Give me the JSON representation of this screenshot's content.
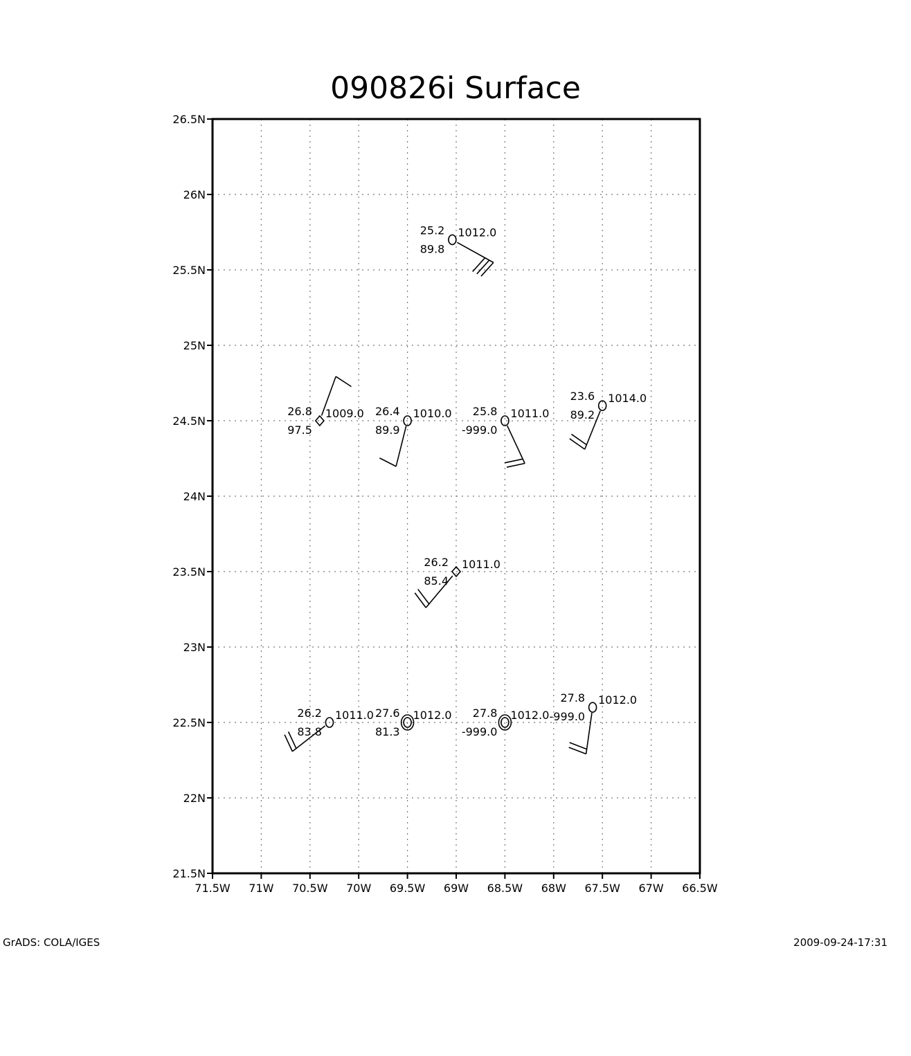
{
  "title": "090826i Surface",
  "footer_left": "GrADS: COLA/IGES",
  "footer_right": "2009-09-24-17:31",
  "map": {
    "lon_range": [
      -71.5,
      -66.5
    ],
    "lat_range": [
      21.5,
      26.5
    ],
    "lon_ticks": [
      {
        "value": -71.5,
        "label": "71.5W"
      },
      {
        "value": -71.0,
        "label": "71W"
      },
      {
        "value": -70.5,
        "label": "70.5W"
      },
      {
        "value": -70.0,
        "label": "70W"
      },
      {
        "value": -69.5,
        "label": "69.5W"
      },
      {
        "value": -69.0,
        "label": "69W"
      },
      {
        "value": -68.5,
        "label": "68.5W"
      },
      {
        "value": -68.0,
        "label": "68W"
      },
      {
        "value": -67.5,
        "label": "67.5W"
      },
      {
        "value": -67.0,
        "label": "67W"
      },
      {
        "value": -66.5,
        "label": "66.5W"
      }
    ],
    "lat_ticks": [
      {
        "value": 21.5,
        "label": "21.5N"
      },
      {
        "value": 22.0,
        "label": "22N"
      },
      {
        "value": 22.5,
        "label": "22.5N"
      },
      {
        "value": 23.0,
        "label": "23N"
      },
      {
        "value": 23.5,
        "label": "23.5N"
      },
      {
        "value": 24.0,
        "label": "24N"
      },
      {
        "value": 24.5,
        "label": "24.5N"
      },
      {
        "value": 25.0,
        "label": "25N"
      },
      {
        "value": 25.5,
        "label": "25.5N"
      },
      {
        "value": 26.0,
        "label": "26N"
      },
      {
        "value": 26.5,
        "label": "26.5N"
      }
    ],
    "grid": true,
    "stations": [
      {
        "lon": -69.04,
        "lat": 25.7,
        "marker": "circle",
        "temp": "25.2",
        "pressure": "1012.0",
        "humidity": "89.8",
        "wind_to_deg": 119,
        "wind_barbs": 3
      },
      {
        "lon": -70.4,
        "lat": 24.5,
        "marker": "diamond",
        "temp": "26.8",
        "pressure": "1009.0",
        "humidity": "97.5",
        "wind_to_deg": 20,
        "wind_barbs": 1
      },
      {
        "lon": -69.5,
        "lat": 24.5,
        "marker": "circle",
        "temp": "26.4",
        "pressure": "1010.0",
        "humidity": "89.9",
        "wind_to_deg": 194,
        "wind_barbs": 1
      },
      {
        "lon": -68.5,
        "lat": 24.5,
        "marker": "circle",
        "temp": "25.8",
        "pressure": "1011.0",
        "humidity": "-999.0",
        "wind_to_deg": 155,
        "wind_barbs": 2
      },
      {
        "lon": -67.5,
        "lat": 24.6,
        "marker": "circle",
        "temp": "23.6",
        "pressure": "1014.0",
        "humidity": "89.2",
        "wind_to_deg": 202,
        "wind_barbs": 2
      },
      {
        "lon": -69.0,
        "lat": 23.5,
        "marker": "diamond",
        "temp": "26.2",
        "pressure": "1011.0",
        "humidity": "85.4",
        "wind_to_deg": 220,
        "wind_barbs": 2
      },
      {
        "lon": -70.3,
        "lat": 22.5,
        "marker": "circle",
        "temp": "26.2",
        "pressure": "1011.0",
        "humidity": "83.8",
        "wind_to_deg": 232,
        "wind_barbs": 2
      },
      {
        "lon": -69.5,
        "lat": 22.5,
        "marker": "double-circle",
        "temp": "27.6",
        "pressure": "1012.0",
        "humidity": "81.3",
        "wind_to_deg": null,
        "wind_barbs": 0
      },
      {
        "lon": -68.5,
        "lat": 22.5,
        "marker": "double-circle",
        "temp": "27.8",
        "pressure": "1012.0",
        "humidity": "-999.0",
        "wind_to_deg": null,
        "wind_barbs": 0
      },
      {
        "lon": -67.6,
        "lat": 22.6,
        "marker": "circle",
        "temp": "27.8",
        "pressure": "1012.0",
        "humidity": "-999.0",
        "wind_to_deg": 188,
        "wind_barbs": 2
      }
    ]
  }
}
